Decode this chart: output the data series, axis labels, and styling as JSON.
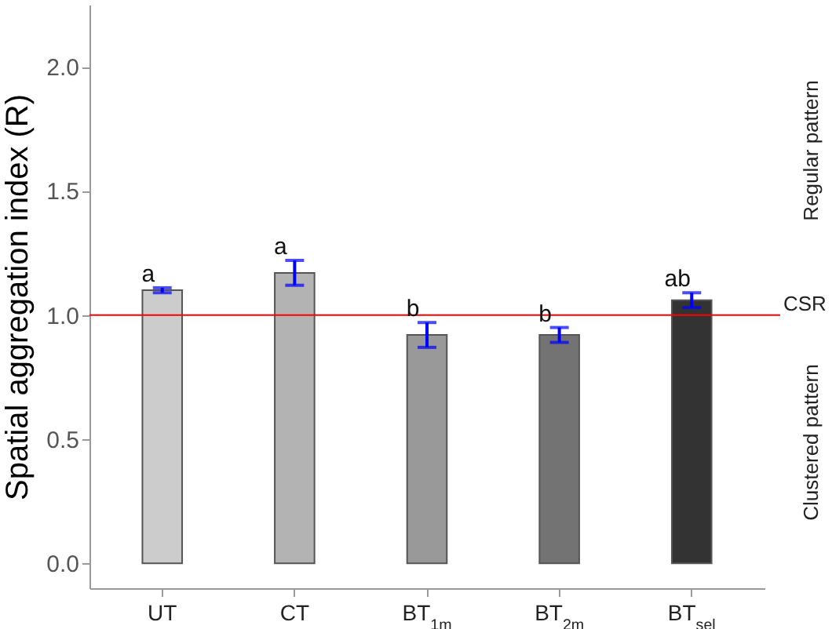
{
  "chart_data": {
    "type": "bar",
    "ylabel": "Spatial aggregation index (R)",
    "categories": [
      "UT",
      "CT",
      "BT$_{1m}$",
      "BT$_{2m}$",
      "BT$_{sel}$"
    ],
    "values": [
      1.1,
      1.17,
      0.92,
      0.92,
      1.06
    ],
    "errors": [
      0.01,
      0.05,
      0.05,
      0.03,
      0.03
    ],
    "colors": [
      "#cccccc",
      "#b3b3b3",
      "#999999",
      "#737373",
      "#333333"
    ],
    "ylim": [
      -0.1,
      2.25
    ],
    "yticks": [
      {
        "value": 0,
        "label": "0.0"
      },
      {
        "value": 0.5,
        "label": "0.5"
      },
      {
        "value": 1,
        "label": "1.0"
      },
      {
        "value": 1.5,
        "label": "1.5"
      },
      {
        "value": 2,
        "label": "2.0"
      }
    ],
    "grid": false,
    "ref_lines": [
      {
        "axis": "y",
        "value": 1,
        "label": "CSR",
        "color": "#ff0000"
      }
    ],
    "annotations": [
      {
        "text": "a",
        "x": "UT",
        "y": 1.11
      },
      {
        "text": "a",
        "x": "CT",
        "y": 1.22
      },
      {
        "text": "b",
        "x": "BT$_{1m}$",
        "y": 0.97
      },
      {
        "text": "b",
        "x": "BT$_{2m}$",
        "y": 0.95
      },
      {
        "text": "ab",
        "x": "BT$_{sel}$",
        "y": 1.09
      },
      "Regular pattern",
      "Clustered pattern"
    ]
  }
}
